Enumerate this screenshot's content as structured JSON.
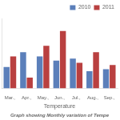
{
  "chart_data": {
    "type": "bar",
    "title": "Graph showing Monthly variation of Tempe",
    "xlabel": "Temperature",
    "categories": [
      "Mar.,",
      "Apr.,",
      "May.,",
      "Jun.,",
      "Jul.,",
      "Aug.,",
      "Sep.,"
    ],
    "series": [
      {
        "name": "2010",
        "color": "#5b7fba",
        "values": [
          6.5,
          7.2,
          7.0,
          6.8,
          6.9,
          6.3,
          6.4
        ]
      },
      {
        "name": "2011",
        "color": "#b94040",
        "values": [
          7.0,
          6.0,
          7.5,
          8.2,
          6.7,
          7.2,
          6.6
        ]
      }
    ],
    "ylim": [
      5.5,
      8.8
    ],
    "tick_labels": "x",
    "grid": false,
    "legend": "upper right"
  }
}
